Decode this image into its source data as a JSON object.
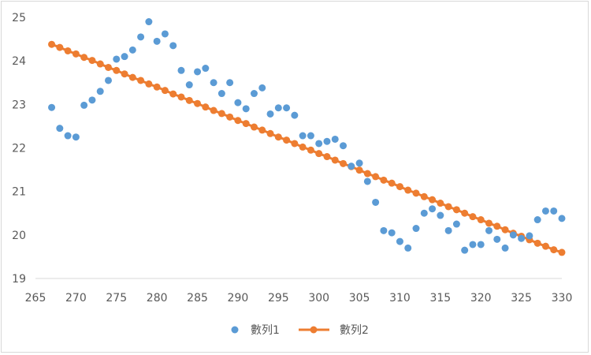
{
  "chart_data": {
    "type": "scatter",
    "title": "",
    "xlabel": "",
    "ylabel": "",
    "xlim": [
      265,
      330
    ],
    "ylim": [
      19,
      25
    ],
    "x_ticks": [
      "265",
      "270",
      "275",
      "280",
      "285",
      "290",
      "295",
      "300",
      "305",
      "310",
      "315",
      "320",
      "325",
      "330"
    ],
    "y_ticks": [
      "19",
      "20",
      "21",
      "22",
      "23",
      "24",
      "25"
    ],
    "grid": false,
    "legend_position": "bottom",
    "series": [
      {
        "name": "數列1",
        "type": "scatter",
        "color": "#5b9bd5",
        "x": [
          267,
          268,
          269,
          270,
          271,
          272,
          273,
          274,
          275,
          276,
          277,
          278,
          279,
          280,
          281,
          282,
          283,
          284,
          285,
          286,
          287,
          288,
          289,
          290,
          291,
          292,
          293,
          294,
          295,
          296,
          297,
          298,
          299,
          300,
          301,
          302,
          303,
          304,
          305,
          306,
          307,
          308,
          309,
          310,
          311,
          312,
          313,
          314,
          315,
          316,
          317,
          318,
          319,
          320,
          321,
          322,
          323,
          324,
          325,
          326,
          327,
          328,
          329,
          330
        ],
        "y": [
          22.93,
          22.45,
          22.28,
          22.25,
          22.98,
          23.1,
          23.3,
          23.55,
          24.04,
          24.1,
          24.25,
          24.55,
          24.9,
          24.45,
          24.62,
          24.35,
          23.78,
          23.45,
          23.75,
          23.83,
          23.5,
          23.25,
          23.5,
          23.04,
          22.9,
          23.25,
          23.38,
          22.78,
          22.92,
          22.92,
          22.75,
          22.28,
          22.28,
          22.1,
          22.15,
          22.2,
          22.05,
          21.58,
          21.65,
          21.23,
          20.75,
          20.1,
          20.05,
          19.85,
          19.7,
          20.15,
          20.5,
          20.6,
          20.45,
          20.1,
          20.25,
          19.65,
          19.78,
          19.78,
          20.1,
          19.9,
          19.7,
          20.0,
          19.92,
          19.98,
          20.35,
          20.55,
          20.55,
          20.38
        ]
      },
      {
        "name": "數列2",
        "type": "line",
        "color": "#ed7d31",
        "x": [
          267,
          268,
          269,
          270,
          271,
          272,
          273,
          274,
          275,
          276,
          277,
          278,
          279,
          280,
          281,
          282,
          283,
          284,
          285,
          286,
          287,
          288,
          289,
          290,
          291,
          292,
          293,
          294,
          295,
          296,
          297,
          298,
          299,
          300,
          301,
          302,
          303,
          304,
          305,
          306,
          307,
          308,
          309,
          310,
          311,
          312,
          313,
          314,
          315,
          316,
          317,
          318,
          319,
          320,
          321,
          322,
          323,
          324,
          325,
          326,
          327,
          328,
          329,
          330
        ],
        "y": [
          24.38,
          24.31,
          24.23,
          24.16,
          24.08,
          24.01,
          23.93,
          23.85,
          23.78,
          23.7,
          23.62,
          23.55,
          23.47,
          23.4,
          23.32,
          23.24,
          23.17,
          23.09,
          23.02,
          22.94,
          22.86,
          22.79,
          22.71,
          22.63,
          22.56,
          22.48,
          22.41,
          22.33,
          22.25,
          22.18,
          22.1,
          22.02,
          21.95,
          21.87,
          21.8,
          21.72,
          21.64,
          21.57,
          21.49,
          21.41,
          21.34,
          21.26,
          21.19,
          21.11,
          21.03,
          20.96,
          20.88,
          20.81,
          20.73,
          20.65,
          20.58,
          20.5,
          20.42,
          20.35,
          20.27,
          20.2,
          20.12,
          20.04,
          19.97,
          19.89,
          19.81,
          19.74,
          19.66,
          19.6
        ]
      }
    ]
  }
}
